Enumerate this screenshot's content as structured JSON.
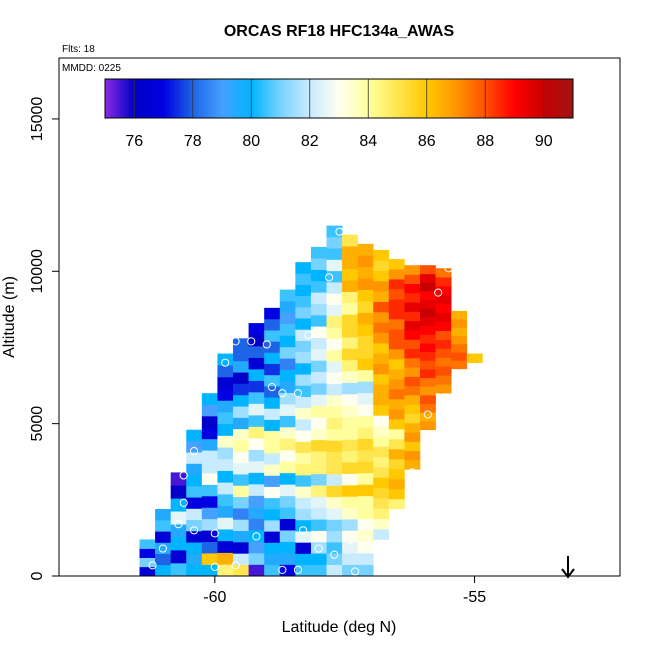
{
  "chart_data": {
    "type": "heatmap",
    "title": "ORCAS RF18 HFC134a_AWAS",
    "annotations": {
      "flights": "Flts: 18",
      "date": "MMDD: 0225"
    },
    "xlabel": "Latitude (deg N)",
    "ylabel": "Altitude (m)",
    "xlim": [
      -63,
      -52.2
    ],
    "ylim": [
      0,
      17000
    ],
    "x_ticks": [
      -60,
      -55
    ],
    "y_ticks": [
      0,
      5000,
      10000,
      15000
    ],
    "grid": false,
    "direction_arrow": "down",
    "colorbar": {
      "placement": "top",
      "min": 75,
      "max": 91,
      "ticks": [
        76,
        78,
        80,
        82,
        84,
        86,
        88,
        90
      ],
      "colors": [
        "#8a2be2",
        "#0000c8",
        "#0000e0",
        "#1e64e6",
        "#46a0ff",
        "#00b4ff",
        "#78d2ff",
        "#c8ebff",
        "#fffff0",
        "#ffffa0",
        "#ffe650",
        "#ffc800",
        "#ff9600",
        "#ff5000",
        "#ff0000",
        "#c80000",
        "#a01414"
      ]
    },
    "columns": [
      {
        "lat": -61.3,
        "bottom": 0,
        "top": 1200,
        "values": [
          76.5,
          81.0,
          77.0,
          80.5
        ]
      },
      {
        "lat": -61.0,
        "bottom": 0,
        "top": 2200,
        "values": [
          80.0,
          78.0,
          79.5,
          76.5,
          80.5,
          79.5
        ]
      },
      {
        "lat": -60.7,
        "bottom": 0,
        "top": 3400,
        "values": [
          80.5,
          76.5,
          80.0,
          79.5,
          82.5,
          80.0,
          76.0,
          75.5
        ]
      },
      {
        "lat": -60.4,
        "bottom": 0,
        "top": 4800,
        "values": [
          80.0,
          79.5,
          80.0,
          76.5,
          81.0,
          82.0,
          77.0,
          80.5,
          80.0,
          79.5,
          82.0,
          79.0,
          80.0
        ]
      },
      {
        "lat": -60.1,
        "bottom": 0,
        "top": 6000,
        "values": [
          80.0,
          86.0,
          78.0,
          76.5,
          81.5,
          79.0,
          77.0,
          80.5,
          83.0,
          82.0,
          82.0,
          79.5,
          77.0,
          76.0,
          79.0,
          80.0
        ]
      },
      {
        "lat": -59.8,
        "bottom": 0,
        "top": 7300,
        "values": [
          84.5,
          86.5,
          76.5,
          80.0,
          82.5,
          79.5,
          80.5,
          82.0,
          80.0,
          82.0,
          81.5,
          83.5,
          80.0,
          80.5,
          79.5,
          77.0,
          76.5,
          78.0,
          80.0
        ]
      },
      {
        "lat": -59.5,
        "bottom": 0,
        "top": 7800,
        "values": [
          85.0,
          82.0,
          76.5,
          79.5,
          81.5,
          78.5,
          81.0,
          84.0,
          80.5,
          82.5,
          83.0,
          84.0,
          83.5,
          79.5,
          81.5,
          80.0,
          77.5,
          76.0,
          79.5,
          78.0,
          78.0
        ]
      },
      {
        "lat": -59.2,
        "bottom": 0,
        "top": 8300,
        "values": [
          75.5,
          81.0,
          79.0,
          80.0,
          78.5,
          79.5,
          79.0,
          82.0,
          80.0,
          82.5,
          81.5,
          83.0,
          84.5,
          80.5,
          82.5,
          80.5,
          77.5,
          80.0,
          76.5,
          78.0,
          76.0,
          77.0
        ]
      },
      {
        "lat": -58.9,
        "bottom": 0,
        "top": 8800,
        "values": [
          80.5,
          79.5,
          80.0,
          76.5,
          81.5,
          80.0,
          80.5,
          83.0,
          79.0,
          83.5,
          82.0,
          84.0,
          84.0,
          80.0,
          82.0,
          80.0,
          78.0,
          80.5,
          77.5,
          80.0,
          78.0,
          80.5,
          78.0,
          77.0
        ]
      },
      {
        "lat": -58.6,
        "bottom": 0,
        "top": 9400,
        "values": [
          77.0,
          79.5,
          80.0,
          81.0,
          76.5,
          80.5,
          81.0,
          82.5,
          80.0,
          84.0,
          83.0,
          84.5,
          83.5,
          80.5,
          82.5,
          81.5,
          79.5,
          80.0,
          78.5,
          81.0,
          80.0,
          80.5,
          79.0,
          79.5,
          80.5
        ]
      },
      {
        "lat": -58.3,
        "bottom": 0,
        "top": 10300,
        "values": [
          80.5,
          80.0,
          76.5,
          82.5,
          80.0,
          81.5,
          82.0,
          83.5,
          80.5,
          84.5,
          84.0,
          85.0,
          83.0,
          82.0,
          83.5,
          82.0,
          80.5,
          81.5,
          80.0,
          81.5,
          81.0,
          82.0,
          80.0,
          81.0,
          80.5,
          80.0,
          80.5,
          80.0
        ]
      },
      {
        "lat": -58.0,
        "bottom": 0,
        "top": 10800,
        "values": [
          80.5,
          80.0,
          81.5,
          83.0,
          80.5,
          82.0,
          82.5,
          84.5,
          81.0,
          84.5,
          84.5,
          85.5,
          83.5,
          83.0,
          84.0,
          82.5,
          81.0,
          82.0,
          81.0,
          82.5,
          82.0,
          83.0,
          80.5,
          81.5,
          82.0,
          80.5,
          80.0,
          81.0,
          80.5
        ]
      },
      {
        "lat": -57.7,
        "bottom": 0,
        "top": 11500,
        "values": [
          82.0,
          81.0,
          80.5,
          81.5,
          81.0,
          82.5,
          83.5,
          85.5,
          82.0,
          85.0,
          85.0,
          85.5,
          84.0,
          84.5,
          84.0,
          83.5,
          82.0,
          83.0,
          82.5,
          84.0,
          83.0,
          84.0,
          84.5,
          82.5,
          83.0,
          82.0,
          80.5,
          82.5,
          80.5,
          81.0,
          80.5
        ]
      },
      {
        "lat": -57.4,
        "bottom": 0,
        "top": 11200,
        "values": [
          81.0,
          82.0,
          82.5,
          83.0,
          81.5,
          83.5,
          84.0,
          86.0,
          83.0,
          85.5,
          84.5,
          85.0,
          84.0,
          84.0,
          83.5,
          83.0,
          81.5,
          83.5,
          84.5,
          85.5,
          84.5,
          85.5,
          85.5,
          84.0,
          84.5,
          86.5,
          86.0,
          86.5,
          86.5,
          85.0
        ]
      },
      {
        "lat": -57.1,
        "bottom": 0,
        "top": 10900,
        "values": [
          81.0,
          82.0,
          83.0,
          83.5,
          83.0,
          84.0,
          84.0,
          86.0,
          84.0,
          85.5,
          85.0,
          85.5,
          84.5,
          84.0,
          83.0,
          82.5,
          81.5,
          84.0,
          86.0,
          85.5,
          85.5,
          86.0,
          86.5,
          85.5,
          86.0,
          87.0,
          86.5,
          87.0,
          86.5
        ]
      },
      {
        "lat": -56.8,
        "bottom": 1200,
        "top": 10700,
        "values": [
          82.0,
          83.5,
          84.5,
          85.0,
          85.5,
          86.0,
          85.0,
          84.5,
          85.0,
          84.0,
          83.5,
          83.0,
          86.0,
          86.5,
          86.5,
          86.0,
          87.0,
          86.5,
          86.0,
          87.0,
          87.5,
          87.0,
          88.0,
          86.5,
          87.0,
          86.0,
          85.5,
          86.0
        ]
      },
      {
        "lat": -56.5,
        "bottom": 2200,
        "top": 10400,
        "values": [
          84.5,
          86.0,
          86.5,
          86.0,
          85.5,
          86.5,
          85.0,
          84.0,
          86.0,
          87.0,
          86.5,
          87.5,
          87.0,
          86.5,
          86.0,
          87.0,
          88.0,
          88.0,
          87.5,
          88.5,
          88.5,
          88.0,
          88.5,
          87.0,
          86.0
        ]
      },
      {
        "lat": -56.2,
        "bottom": 3500,
        "top": 10200,
        "values": [
          86.5,
          87.0,
          86.0,
          87.0,
          86.5,
          85.5,
          86.0,
          86.5,
          87.5,
          88.0,
          87.0,
          87.5,
          88.5,
          88.0,
          89.0,
          89.5,
          88.5,
          89.5,
          88.5,
          89.0,
          88.0,
          87.0
        ]
      },
      {
        "lat": -55.9,
        "bottom": 4800,
        "top": 10200,
        "values": [
          87.0,
          86.5,
          87.5,
          88.0,
          87.0,
          87.5,
          88.5,
          88.0,
          88.5,
          89.0,
          88.5,
          89.0,
          89.5,
          90.0,
          89.5,
          89.0,
          90.0,
          89.5,
          88.0
        ]
      },
      {
        "lat": -55.6,
        "bottom": 6000,
        "top": 10100,
        "values": [
          87.0,
          87.5,
          88.0,
          87.5,
          88.0,
          88.5,
          88.0,
          89.0,
          89.5,
          89.0,
          89.5,
          89.0,
          88.5,
          87.5
        ]
      },
      {
        "lat": -55.3,
        "bottom": 6800,
        "top": 8700,
        "values": [
          87.5,
          88.0,
          87.5,
          87.0,
          86.5,
          87.0,
          86.5
        ]
      },
      {
        "lat": -55.0,
        "bottom": 7000,
        "top": 7300,
        "values": [
          86.0
        ]
      }
    ],
    "samples": [
      {
        "lat": -61.2,
        "alt": 350
      },
      {
        "lat": -61.0,
        "alt": 900
      },
      {
        "lat": -60.7,
        "alt": 1700
      },
      {
        "lat": -60.6,
        "alt": 2400
      },
      {
        "lat": -60.6,
        "alt": 3300
      },
      {
        "lat": -60.4,
        "alt": 4100
      },
      {
        "lat": -60.4,
        "alt": 1500
      },
      {
        "lat": -60.0,
        "alt": 1400
      },
      {
        "lat": -59.8,
        "alt": 7000
      },
      {
        "lat": -59.6,
        "alt": 7700
      },
      {
        "lat": -59.3,
        "alt": 7700
      },
      {
        "lat": -59.0,
        "alt": 7600
      },
      {
        "lat": -59.2,
        "alt": 1300
      },
      {
        "lat": -60.0,
        "alt": 300
      },
      {
        "lat": -59.6,
        "alt": 350
      },
      {
        "lat": -58.9,
        "alt": 6200
      },
      {
        "lat": -58.7,
        "alt": 6000
      },
      {
        "lat": -58.4,
        "alt": 6000
      },
      {
        "lat": -58.2,
        "alt": 7900
      },
      {
        "lat": -58.7,
        "alt": 200
      },
      {
        "lat": -58.4,
        "alt": 200
      },
      {
        "lat": -58.0,
        "alt": 900
      },
      {
        "lat": -58.3,
        "alt": 1500
      },
      {
        "lat": -57.7,
        "alt": 700
      },
      {
        "lat": -57.3,
        "alt": 150
      },
      {
        "lat": -57.4,
        "alt": 1200
      },
      {
        "lat": -57.1,
        "alt": 1200
      },
      {
        "lat": -56.7,
        "alt": 350
      },
      {
        "lat": -56.5,
        "alt": 100
      },
      {
        "lat": -56.4,
        "alt": 1500
      },
      {
        "lat": -56.2,
        "alt": 3400
      },
      {
        "lat": -55.9,
        "alt": 5300
      },
      {
        "lat": -55.7,
        "alt": 9300
      },
      {
        "lat": -55.5,
        "alt": 10100
      },
      {
        "lat": -55.3,
        "alt": 10100
      },
      {
        "lat": -55.1,
        "alt": 10100
      },
      {
        "lat": -54.9,
        "alt": 10100
      },
      {
        "lat": -57.6,
        "alt": 11300
      },
      {
        "lat": -57.8,
        "alt": 9800
      },
      {
        "lat": -54.7,
        "alt": 7100
      }
    ]
  }
}
